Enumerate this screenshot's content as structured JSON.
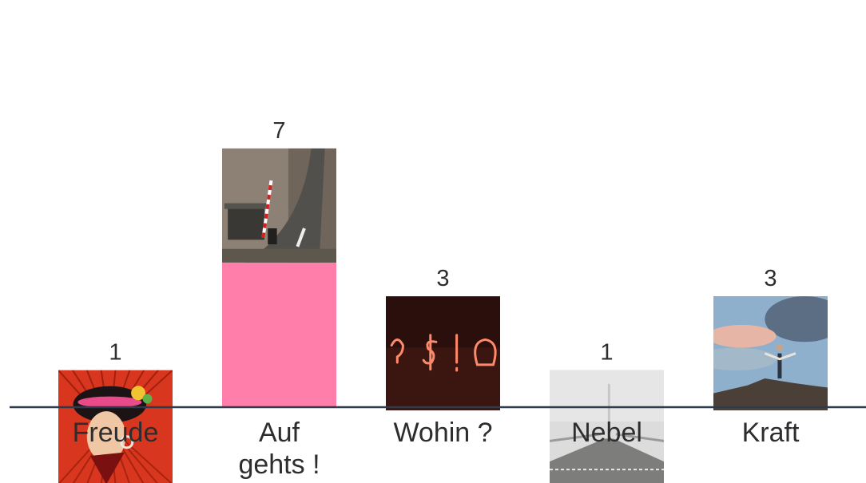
{
  "chart_data": {
    "type": "bar",
    "categories": [
      "Freude",
      "Auf gehts !",
      "Wohin ?",
      "Nebel",
      "Kraft"
    ],
    "category_lines": [
      [
        "Freude"
      ],
      [
        "Auf",
        "gehts !"
      ],
      [
        "Wohin ?"
      ],
      [
        "Nebel"
      ],
      [
        "Kraft"
      ]
    ],
    "values": [
      1,
      7,
      3,
      1,
      3
    ],
    "value_labels": [
      "1",
      "7",
      "3",
      "1",
      "3"
    ],
    "colors": [
      "#2f6df2",
      "#ff7eaa",
      "#ff3f3a",
      "#ffc52e",
      "#0ccc85"
    ],
    "images": [
      "woman-in-traditional-costume-photo",
      "steep-road-with-barrier-photo",
      "neon-question-dollar-skull-signs-photo",
      "foggy-bridge-photo",
      "person-on-mountain-summit-photo"
    ],
    "title": "",
    "xlabel": "",
    "ylabel": "",
    "ylim": [
      0,
      7
    ],
    "grid": false,
    "legend": "none"
  }
}
